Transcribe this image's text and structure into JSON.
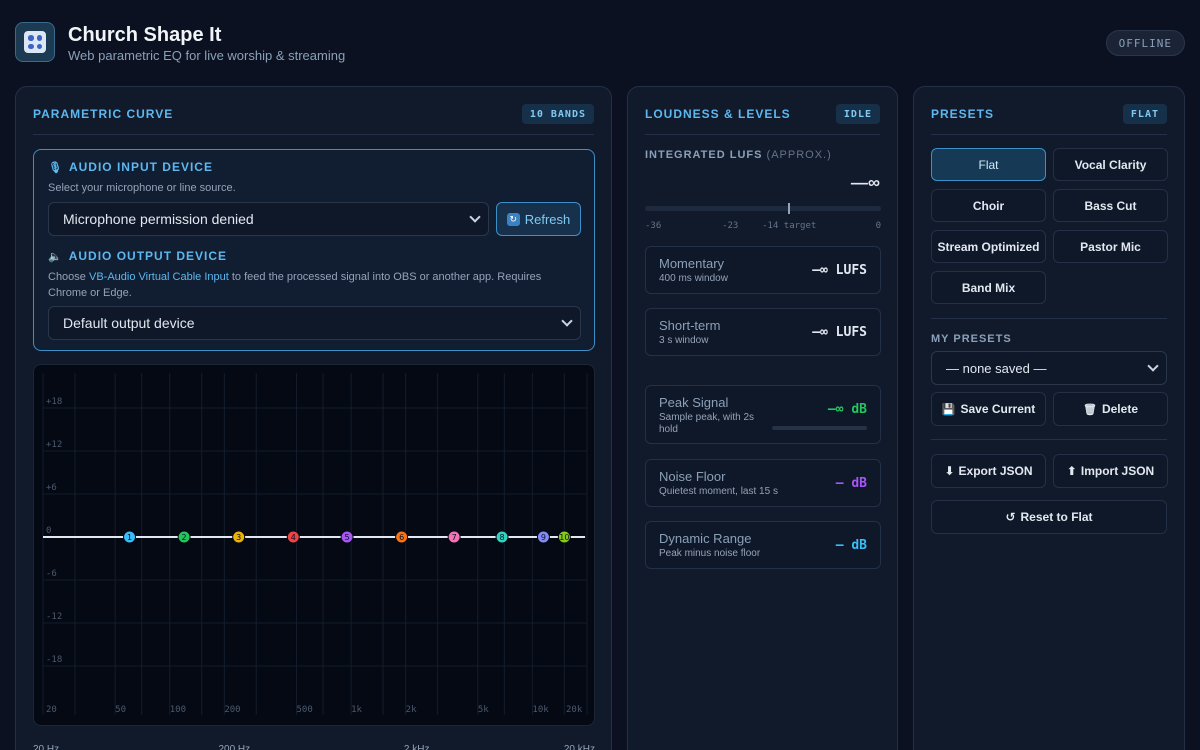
{
  "header": {
    "title": "Church Shape It",
    "subtitle": "Web parametric EQ for live worship & streaming",
    "status": "OFFLINE"
  },
  "curve_panel": {
    "title": "PARAMETRIC CURVE",
    "badge": "10 BANDS",
    "input": {
      "label": "AUDIO INPUT DEVICE",
      "help": "Select your microphone or line source.",
      "selected": "Microphone permission denied",
      "refresh_label": "Refresh"
    },
    "output": {
      "label": "AUDIO OUTPUT DEVICE",
      "help_pre": "Choose ",
      "help_link": "VB-Audio Virtual Cable Input",
      "help_post": " to feed the processed signal into OBS or another app. Requires Chrome or Edge.",
      "selected": "Default output device"
    },
    "graph": {
      "db_labels": [
        "+18",
        "+12",
        "+6",
        "0",
        "-6",
        "-12",
        "-18"
      ],
      "db_values": [
        18,
        12,
        6,
        0,
        -6,
        -12,
        -18
      ],
      "db_range": [
        -24,
        24
      ],
      "freq_labels": [
        "20",
        "50",
        "100",
        "200",
        "500",
        "1k",
        "2k",
        "5k",
        "10k",
        "20k"
      ],
      "freq_values": [
        20,
        50,
        100,
        200,
        500,
        1000,
        2000,
        5000,
        10000,
        20000
      ],
      "freq_range": [
        20,
        20000
      ],
      "grid_freqs": [
        20,
        30,
        50,
        70,
        100,
        150,
        200,
        300,
        500,
        700,
        1000,
        1500,
        2000,
        3000,
        5000,
        7000,
        10000,
        15000,
        20000
      ],
      "bands": [
        {
          "label": "1",
          "freq": 60,
          "gain": 0,
          "color": "#38bdf8"
        },
        {
          "label": "2",
          "freq": 120,
          "gain": 0,
          "color": "#22c55e"
        },
        {
          "label": "3",
          "freq": 240,
          "gain": 0,
          "color": "#eab308"
        },
        {
          "label": "4",
          "freq": 480,
          "gain": 0,
          "color": "#ef4444"
        },
        {
          "label": "5",
          "freq": 950,
          "gain": 0,
          "color": "#a855f7"
        },
        {
          "label": "6",
          "freq": 1900,
          "gain": 0,
          "color": "#f97316"
        },
        {
          "label": "7",
          "freq": 3700,
          "gain": 0,
          "color": "#f472b6"
        },
        {
          "label": "8",
          "freq": 6800,
          "gain": 0,
          "color": "#2dd4bf"
        },
        {
          "label": "9",
          "freq": 11500,
          "gain": 0,
          "color": "#818cf8"
        },
        {
          "label": "10",
          "freq": 15000,
          "gain": 0,
          "color": "#84cc16"
        }
      ]
    },
    "freq_bottom": [
      "20 Hz",
      "200 Hz",
      "2 kHz",
      "20 kHz"
    ]
  },
  "loudness_panel": {
    "title": "LOUDNESS & LEVELS",
    "badge": "IDLE",
    "integrated_label": "INTEGRATED LUFS",
    "integrated_approx": "(APPROX.)",
    "integrated_value": "—∞",
    "scale": [
      "-36",
      "-23",
      "-14 target",
      "0"
    ],
    "scale_values": [
      -36,
      -23,
      -14,
      0
    ],
    "target_lufs": -14,
    "momentary": {
      "name": "Momentary",
      "sub": "400 ms window",
      "value": "—∞ LUFS"
    },
    "short_term": {
      "name": "Short-term",
      "sub": "3 s window",
      "value": "—∞ LUFS"
    },
    "peak": {
      "name": "Peak Signal",
      "sub": "Sample peak, with 2s hold",
      "value": "—∞ dB"
    },
    "noise_floor": {
      "name": "Noise Floor",
      "sub": "Quietest moment, last 15 s",
      "value": "— dB"
    },
    "dynamic_range": {
      "name": "Dynamic Range",
      "sub": "Peak minus noise floor",
      "value": "— dB"
    }
  },
  "presets_panel": {
    "title": "PRESETS",
    "badge": "FLAT",
    "presets": [
      "Flat",
      "Vocal Clarity",
      "Choir",
      "Bass Cut",
      "Stream Optimized",
      "Pastor Mic",
      "Band Mix"
    ],
    "my_presets_label": "MY PRESETS",
    "my_presets_selected": "— none saved —",
    "save_label": "Save Current",
    "delete_label": "Delete",
    "export_label": "Export JSON",
    "import_label": "Import JSON",
    "reset_label": "Reset to Flat"
  }
}
